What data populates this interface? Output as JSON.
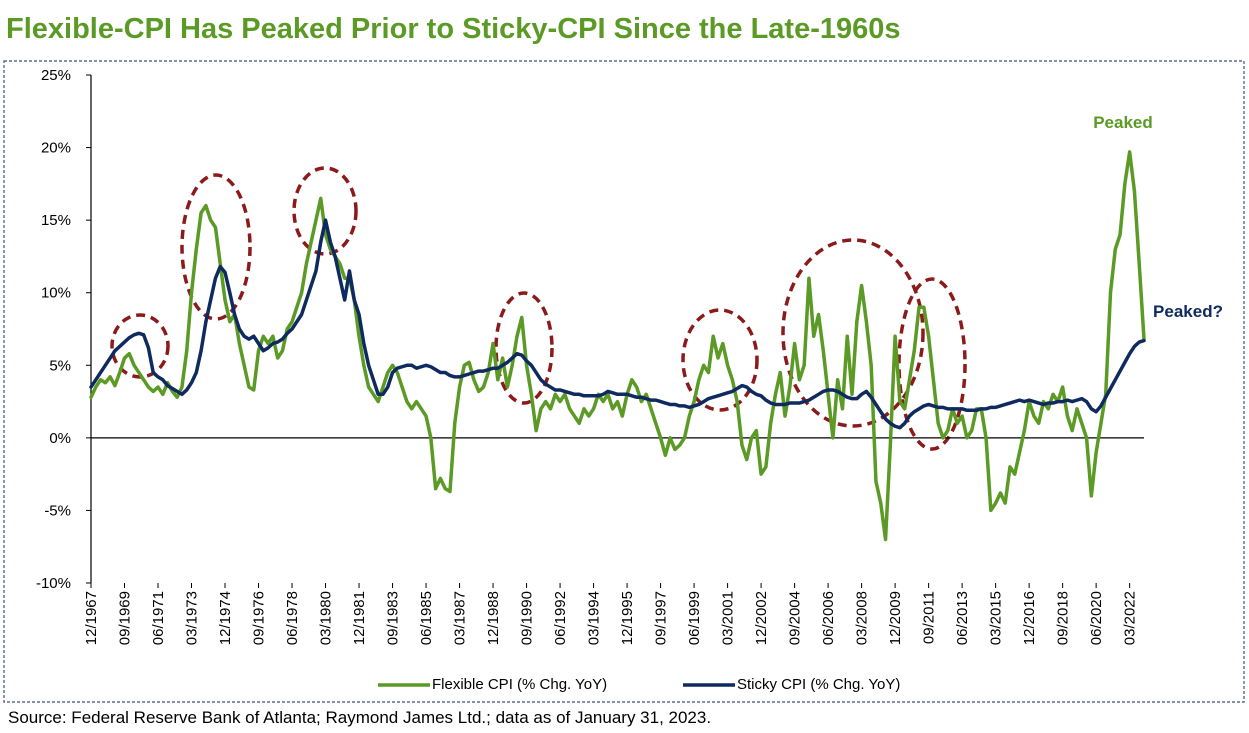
{
  "chart_data": {
    "type": "line",
    "title": "Flexible-CPI Has Peaked Prior to Sticky-CPI Since the Late-1960s",
    "source": "Source: Federal Reserve Bank of Atlanta; Raymond James Ltd.; data as of January 31, 2023.",
    "annotations": [
      "Peaked",
      "Peaked?"
    ],
    "categories": [
      "12/1967",
      null,
      null,
      null,
      null,
      null,
      null,
      "09/1969",
      null,
      null,
      null,
      null,
      null,
      null,
      "06/1971",
      null,
      null,
      null,
      null,
      null,
      null,
      "03/1973",
      null,
      null,
      null,
      null,
      null,
      null,
      "12/1974",
      null,
      null,
      null,
      null,
      null,
      null,
      "09/1976",
      null,
      null,
      null,
      null,
      null,
      null,
      "06/1978",
      null,
      null,
      null,
      null,
      null,
      null,
      "03/1980",
      null,
      null,
      null,
      null,
      null,
      null,
      "12/1981",
      null,
      null,
      null,
      null,
      null,
      null,
      "09/1983",
      null,
      null,
      null,
      null,
      null,
      null,
      "06/1985",
      null,
      null,
      null,
      null,
      null,
      null,
      "03/1987",
      null,
      null,
      null,
      null,
      null,
      null,
      "12/1988",
      null,
      null,
      null,
      null,
      null,
      null,
      "09/1990",
      null,
      null,
      null,
      null,
      null,
      null,
      "06/1992",
      null,
      null,
      null,
      null,
      null,
      null,
      "03/1994",
      null,
      null,
      null,
      null,
      null,
      null,
      "12/1995",
      null,
      null,
      null,
      null,
      null,
      null,
      "09/1997",
      null,
      null,
      null,
      null,
      null,
      null,
      "06/1999",
      null,
      null,
      null,
      null,
      null,
      null,
      "03/2001",
      null,
      null,
      null,
      null,
      null,
      null,
      "12/2002",
      null,
      null,
      null,
      null,
      null,
      null,
      "09/2004",
      null,
      null,
      null,
      null,
      null,
      null,
      "06/2006",
      null,
      null,
      null,
      null,
      null,
      null,
      "03/2008",
      null,
      null,
      null,
      null,
      null,
      null,
      "12/2009",
      null,
      null,
      null,
      null,
      null,
      null,
      "09/2011",
      null,
      null,
      null,
      null,
      null,
      null,
      "06/2013",
      null,
      null,
      null,
      null,
      null,
      null,
      "03/2015",
      null,
      null,
      null,
      null,
      null,
      null,
      "12/2016",
      null,
      null,
      null,
      null,
      null,
      null,
      "09/2018",
      null,
      null,
      null,
      null,
      null,
      null,
      "06/2020",
      null,
      null,
      null,
      null,
      null,
      null,
      "03/2022",
      null,
      null,
      null
    ],
    "series": [
      {
        "name": "Flexible CPI (% Chg. YoY)",
        "color": "#5b9a25",
        "values": [
          2.8,
          3.5,
          4.0,
          3.8,
          4.2,
          3.6,
          4.5,
          5.5,
          5.8,
          5.0,
          4.5,
          4.0,
          3.5,
          3.2,
          3.5,
          3.0,
          3.8,
          3.2,
          2.8,
          3.5,
          6.0,
          10.0,
          13.0,
          15.5,
          16.0,
          15.0,
          14.5,
          12.0,
          9.5,
          8.0,
          8.5,
          6.5,
          5.0,
          3.5,
          3.3,
          6.0,
          7.0,
          6.5,
          7.0,
          5.5,
          6.0,
          7.5,
          8.0,
          9.0,
          10.0,
          12.0,
          13.5,
          15.0,
          16.5,
          14.0,
          13.0,
          12.5,
          12.0,
          11.0,
          11.0,
          9.5,
          7.0,
          5.0,
          3.5,
          3.0,
          2.5,
          3.5,
          4.5,
          5.0,
          4.5,
          3.5,
          2.5,
          2.0,
          2.5,
          2.0,
          1.5,
          0.0,
          -3.5,
          -2.8,
          -3.5,
          -3.7,
          1.0,
          3.5,
          5.0,
          5.2,
          4.0,
          3.2,
          3.5,
          4.5,
          6.5,
          4.0,
          5.5,
          3.5,
          5.0,
          7.0,
          8.3,
          5.0,
          3.0,
          0.5,
          2.0,
          2.5,
          2.0,
          3.0,
          2.5,
          3.0,
          2.0,
          1.5,
          1.0,
          2.0,
          1.5,
          2.0,
          3.0,
          2.5,
          3.0,
          2.0,
          2.5,
          1.5,
          3.0,
          4.0,
          3.5,
          2.5,
          3.0,
          2.0,
          1.0,
          0.0,
          -1.2,
          0.0,
          -0.8,
          -0.5,
          0.0,
          1.5,
          2.5,
          4.0,
          5.0,
          4.5,
          7.0,
          5.5,
          6.5,
          5.0,
          4.0,
          2.5,
          -0.5,
          -1.5,
          0.0,
          0.5,
          -2.5,
          -2.0,
          1.0,
          3.0,
          4.5,
          1.5,
          3.5,
          6.5,
          4.0,
          5.0,
          11.0,
          7.0,
          8.5,
          6.0,
          3.0,
          0.0,
          4.0,
          2.0,
          7.0,
          3.0,
          8.0,
          10.5,
          8.0,
          5.0,
          -3.0,
          -4.5,
          -7.0,
          -0.5,
          7.0,
          2.5,
          2.0,
          4.0,
          6.0,
          9.0,
          9.0,
          7.0,
          4.0,
          1.0,
          0.0,
          0.5,
          2.0,
          1.0,
          1.5,
          0.0,
          0.5,
          2.0,
          2.0,
          0.0,
          -5.0,
          -4.5,
          -3.8,
          -4.5,
          -2.0,
          -2.5,
          -1.0,
          0.5,
          2.5,
          1.5,
          1.0,
          2.5,
          2.0,
          3.0,
          2.5,
          3.5,
          1.5,
          0.5,
          2.0,
          1.0,
          0.0,
          -4.0,
          -1.0,
          1.0,
          3.0,
          10.0,
          13.0,
          14.0,
          17.5,
          19.7,
          17.0,
          12.0,
          6.8
        ]
      },
      {
        "name": "Sticky CPI (% Chg. YoY)",
        "color": "#0f2a5e",
        "values": [
          3.5,
          4.0,
          4.5,
          5.0,
          5.5,
          6.0,
          6.3,
          6.6,
          6.9,
          7.1,
          7.2,
          7.1,
          6.2,
          4.5,
          4.2,
          4.0,
          3.6,
          3.4,
          3.2,
          3.0,
          3.3,
          3.8,
          4.5,
          6.0,
          8.0,
          9.5,
          11.0,
          11.8,
          11.4,
          10.0,
          8.5,
          7.5,
          7.0,
          6.8,
          7.0,
          6.5,
          6.0,
          6.2,
          6.5,
          6.6,
          6.8,
          7.2,
          7.5,
          8.0,
          8.5,
          9.5,
          10.5,
          11.5,
          13.5,
          15.0,
          13.5,
          12.5,
          11.0,
          9.5,
          11.5,
          9.5,
          8.5,
          6.5,
          5.0,
          4.0,
          3.0,
          3.0,
          3.5,
          4.5,
          4.8,
          4.9,
          5.0,
          5.0,
          4.8,
          4.9,
          5.0,
          4.9,
          4.7,
          4.5,
          4.5,
          4.3,
          4.2,
          4.2,
          4.3,
          4.4,
          4.5,
          4.6,
          4.6,
          4.7,
          4.8,
          4.8,
          5.0,
          5.2,
          5.5,
          5.8,
          5.7,
          5.3,
          5.0,
          4.5,
          4.0,
          3.7,
          3.5,
          3.3,
          3.3,
          3.2,
          3.1,
          3.0,
          3.0,
          2.9,
          2.9,
          2.9,
          2.9,
          3.0,
          3.2,
          3.1,
          3.0,
          3.0,
          3.0,
          2.9,
          2.8,
          2.8,
          2.7,
          2.6,
          2.6,
          2.5,
          2.4,
          2.3,
          2.3,
          2.2,
          2.2,
          2.1,
          2.2,
          2.3,
          2.5,
          2.7,
          2.8,
          2.9,
          3.0,
          3.1,
          3.2,
          3.4,
          3.6,
          3.5,
          3.2,
          3.0,
          2.9,
          2.6,
          2.4,
          2.3,
          2.3,
          2.3,
          2.4,
          2.4,
          2.4,
          2.5,
          2.6,
          2.8,
          3.0,
          3.2,
          3.3,
          3.3,
          3.2,
          3.0,
          2.8,
          2.7,
          2.7,
          3.0,
          3.2,
          2.8,
          2.3,
          1.8,
          1.3,
          1.0,
          0.8,
          0.7,
          1.0,
          1.5,
          1.8,
          2.0,
          2.2,
          2.3,
          2.2,
          2.1,
          2.1,
          2.0,
          2.0,
          2.0,
          2.0,
          1.9,
          1.9,
          1.9,
          2.0,
          2.0,
          2.1,
          2.1,
          2.2,
          2.3,
          2.4,
          2.5,
          2.6,
          2.5,
          2.6,
          2.5,
          2.4,
          2.3,
          2.4,
          2.4,
          2.5,
          2.5,
          2.6,
          2.5,
          2.6,
          2.7,
          2.5,
          2.0,
          1.8,
          2.2,
          2.8,
          3.4,
          4.0,
          4.6,
          5.2,
          5.8,
          6.3,
          6.6,
          6.7
        ]
      }
    ],
    "ylim": [
      -10,
      25
    ],
    "yticks": [
      {
        "value": -10,
        "label": "-10%"
      },
      {
        "value": -5,
        "label": "-5%"
      },
      {
        "value": 0,
        "label": "0%"
      },
      {
        "value": 5,
        "label": "5%"
      },
      {
        "value": 10,
        "label": "10%"
      },
      {
        "value": 15,
        "label": "15%"
      },
      {
        "value": 20,
        "label": "20%"
      },
      {
        "value": 25,
        "label": "25%"
      }
    ],
    "grid": false
  }
}
